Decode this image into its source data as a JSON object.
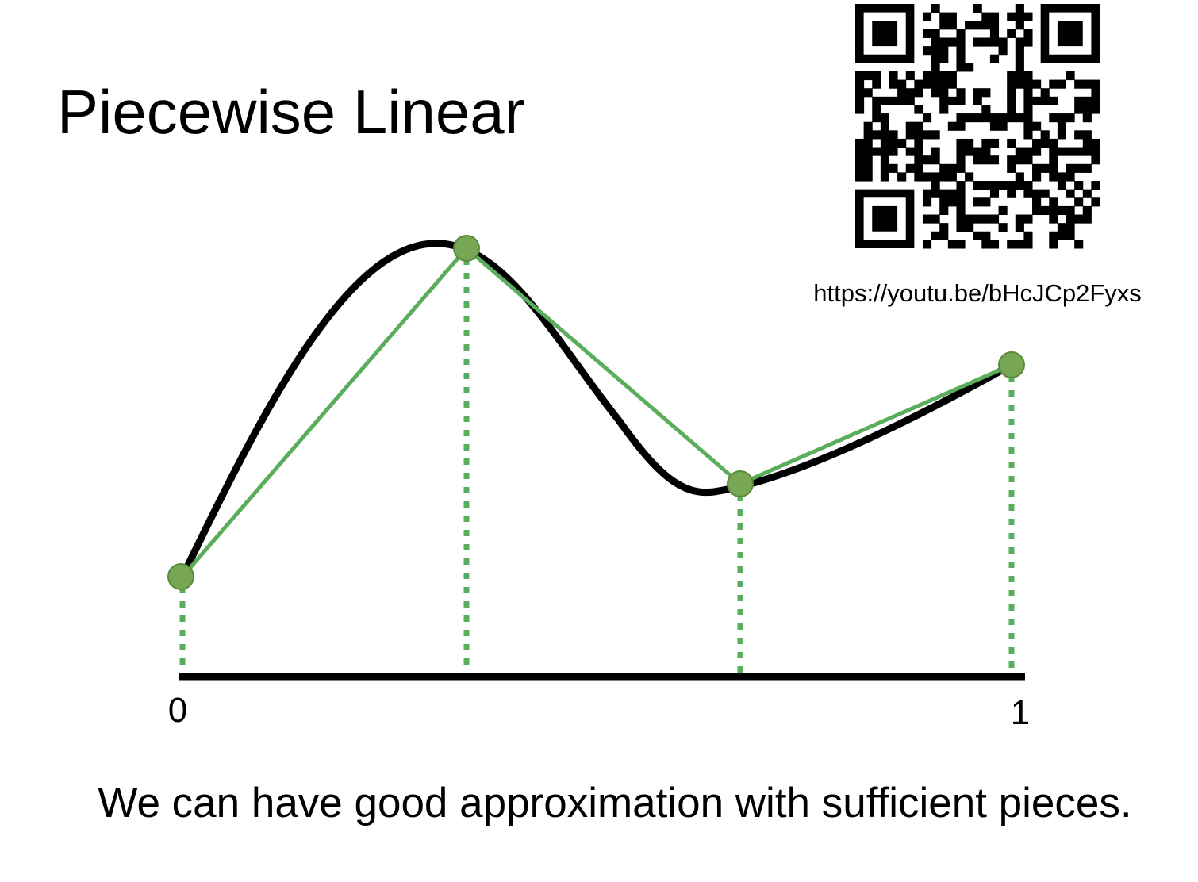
{
  "title": "Piecewise Linear",
  "qr_url": "https://youtu.be/bHcJCp2Fyxs",
  "axis_labels": [
    "0",
    "1"
  ],
  "caption": "We can have good approximation with sufficient pieces."
}
